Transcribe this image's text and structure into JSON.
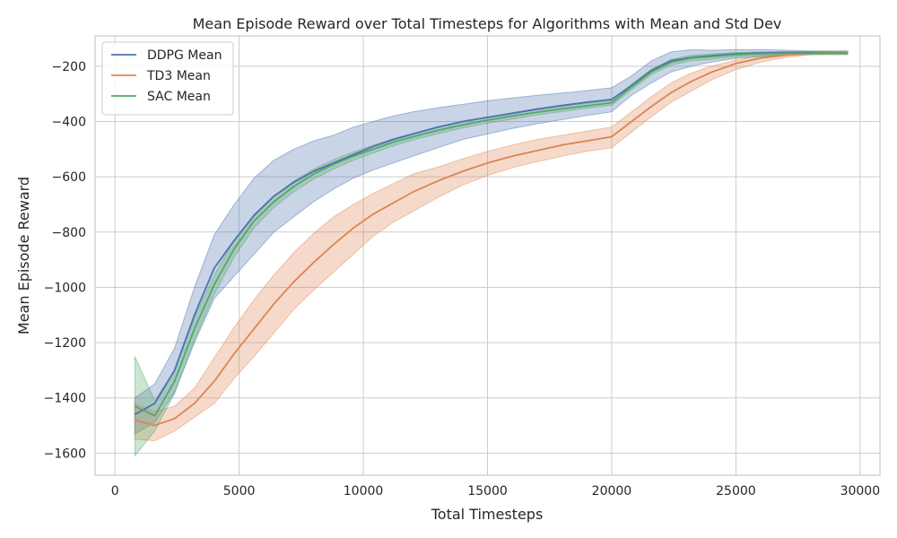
{
  "chart_data": {
    "type": "line",
    "title": "Mean Episode Reward over Total Timesteps for Algorithms with Mean and Std Dev",
    "xlabel": "Total Timesteps",
    "ylabel": "Mean Episode Reward",
    "xlim": [
      -800,
      30800
    ],
    "ylim": [
      -1680,
      -90
    ],
    "xticks": [
      0,
      5000,
      10000,
      15000,
      20000,
      25000,
      30000
    ],
    "xtick_labels": [
      "0",
      "5000",
      "10000",
      "15000",
      "20000",
      "25000",
      "30000"
    ],
    "yticks": [
      -1600,
      -1400,
      -1200,
      -1000,
      -800,
      -600,
      -400,
      -200
    ],
    "ytick_labels": [
      "−1600",
      "−1400",
      "−1200",
      "−1000",
      "−800",
      "−600",
      "−400",
      "−200"
    ],
    "grid": true,
    "legend_position": "top-left",
    "series": [
      {
        "name": "DDPG Mean",
        "color": "#4c72b0",
        "x": [
          800,
          1600,
          2400,
          3200,
          4000,
          4800,
          5600,
          6400,
          7200,
          8000,
          8800,
          9600,
          10400,
          11200,
          12000,
          13000,
          14000,
          15000,
          16000,
          17000,
          18000,
          19000,
          20000,
          20800,
          21600,
          22400,
          23200,
          24000,
          25000,
          26000,
          27000,
          28000,
          29500
        ],
        "mean": [
          -1460,
          -1420,
          -1300,
          -1100,
          -930,
          -830,
          -740,
          -670,
          -620,
          -580,
          -550,
          -520,
          -490,
          -465,
          -445,
          -420,
          -400,
          -385,
          -370,
          -355,
          -342,
          -330,
          -320,
          -270,
          -215,
          -180,
          -168,
          -162,
          -155,
          -152,
          -150,
          -150,
          -150
        ],
        "upper": [
          -1400,
          -1350,
          -1220,
          -1000,
          -810,
          -700,
          -605,
          -540,
          -500,
          -470,
          -450,
          -420,
          -400,
          -380,
          -365,
          -350,
          -338,
          -325,
          -315,
          -305,
          -297,
          -288,
          -278,
          -235,
          -180,
          -148,
          -140,
          -142,
          -140,
          -140,
          -142,
          -145,
          -145
        ],
        "lower": [
          -1530,
          -1490,
          -1380,
          -1200,
          -1040,
          -960,
          -880,
          -800,
          -745,
          -690,
          -645,
          -605,
          -575,
          -550,
          -525,
          -495,
          -465,
          -445,
          -425,
          -408,
          -393,
          -378,
          -365,
          -305,
          -260,
          -220,
          -200,
          -185,
          -172,
          -165,
          -160,
          -157,
          -157
        ]
      },
      {
        "name": "TD3 Mean",
        "color": "#dd8452",
        "x": [
          800,
          1600,
          2400,
          3200,
          4000,
          4800,
          5600,
          6400,
          7200,
          8000,
          8800,
          9600,
          10400,
          11200,
          12000,
          13000,
          14000,
          15000,
          16000,
          17000,
          18000,
          19000,
          20000,
          20800,
          21600,
          22400,
          23200,
          24000,
          25000,
          26000,
          27000,
          28000,
          29500
        ],
        "mean": [
          -1480,
          -1500,
          -1475,
          -1420,
          -1340,
          -1240,
          -1150,
          -1060,
          -980,
          -910,
          -845,
          -785,
          -735,
          -695,
          -655,
          -615,
          -580,
          -550,
          -525,
          -505,
          -485,
          -470,
          -455,
          -400,
          -345,
          -295,
          -255,
          -222,
          -190,
          -170,
          -160,
          -152,
          -148
        ],
        "upper": [
          -1420,
          -1450,
          -1430,
          -1365,
          -1255,
          -1145,
          -1045,
          -955,
          -875,
          -805,
          -745,
          -700,
          -660,
          -625,
          -590,
          -565,
          -535,
          -508,
          -485,
          -465,
          -450,
          -435,
          -420,
          -365,
          -310,
          -260,
          -225,
          -200,
          -178,
          -162,
          -155,
          -148,
          -145
        ],
        "lower": [
          -1550,
          -1555,
          -1520,
          -1470,
          -1420,
          -1330,
          -1250,
          -1165,
          -1080,
          -1010,
          -945,
          -880,
          -815,
          -765,
          -725,
          -675,
          -630,
          -595,
          -567,
          -545,
          -525,
          -508,
          -495,
          -438,
          -382,
          -330,
          -290,
          -250,
          -212,
          -185,
          -168,
          -158,
          -152
        ]
      },
      {
        "name": "SAC Mean",
        "color": "#55a868",
        "x": [
          800,
          1600,
          2400,
          3200,
          4000,
          4800,
          5600,
          6400,
          7200,
          8000,
          8800,
          9600,
          10400,
          11200,
          12000,
          13000,
          14000,
          15000,
          16000,
          17000,
          18000,
          19000,
          20000,
          20800,
          21600,
          22400,
          23200,
          24000,
          25000,
          26000,
          27000,
          28000,
          29500
        ],
        "mean": [
          -1430,
          -1465,
          -1340,
          -1150,
          -990,
          -860,
          -760,
          -690,
          -635,
          -590,
          -555,
          -525,
          -500,
          -475,
          -455,
          -432,
          -412,
          -395,
          -380,
          -366,
          -354,
          -343,
          -332,
          -275,
          -220,
          -185,
          -170,
          -165,
          -158,
          -155,
          -153,
          -152,
          -152
        ],
        "upper": [
          -1250,
          -1410,
          -1300,
          -1110,
          -955,
          -830,
          -735,
          -670,
          -615,
          -572,
          -538,
          -510,
          -486,
          -462,
          -443,
          -420,
          -401,
          -384,
          -369,
          -356,
          -344,
          -334,
          -323,
          -265,
          -210,
          -175,
          -160,
          -155,
          -150,
          -148,
          -147,
          -146,
          -146
        ],
        "lower": [
          -1610,
          -1520,
          -1385,
          -1190,
          -1025,
          -890,
          -785,
          -710,
          -655,
          -608,
          -572,
          -540,
          -514,
          -488,
          -467,
          -444,
          -423,
          -406,
          -391,
          -376,
          -364,
          -352,
          -341,
          -285,
          -230,
          -195,
          -180,
          -175,
          -166,
          -162,
          -159,
          -158,
          -158
        ]
      }
    ]
  }
}
